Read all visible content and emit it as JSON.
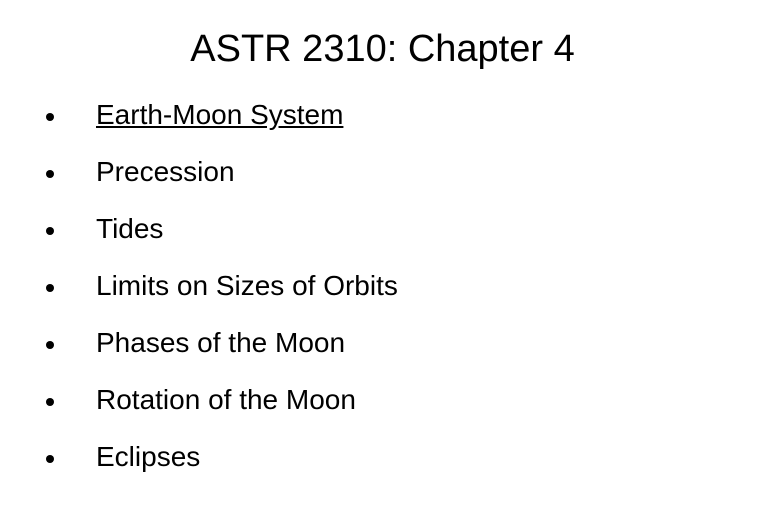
{
  "slide": {
    "title": "ASTR 2310: Chapter 4",
    "title_fontsize": 38,
    "background_color": "#ffffff",
    "text_color": "#000000",
    "bullet_color": "#000000",
    "bullet_size": 8,
    "item_fontsize": 28,
    "items": [
      {
        "text": "Earth-Moon System",
        "underline": true
      },
      {
        "text": "Precession",
        "underline": false
      },
      {
        "text": "Tides",
        "underline": false
      },
      {
        "text": "Limits on Sizes of Orbits",
        "underline": false
      },
      {
        "text": "Phases of the Moon",
        "underline": false
      },
      {
        "text": "Rotation of the Moon",
        "underline": false
      },
      {
        "text": "Eclipses",
        "underline": false
      }
    ]
  }
}
